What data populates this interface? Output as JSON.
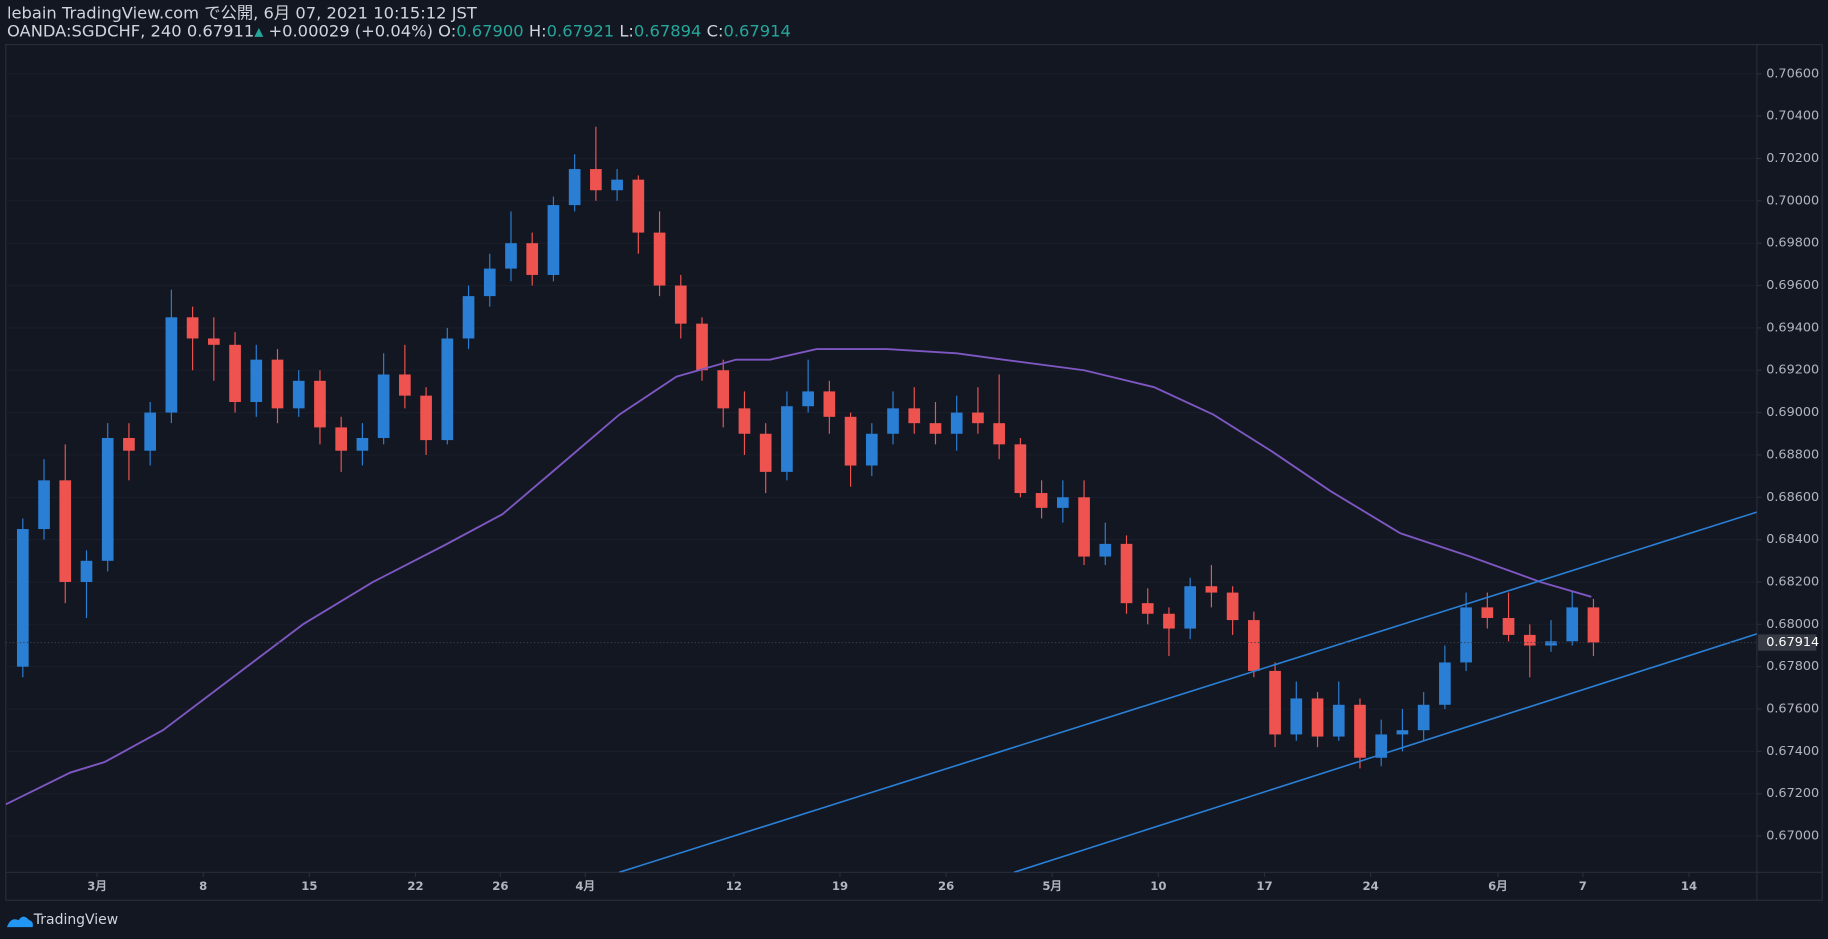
{
  "header": {
    "line1": "lebain TradingView.com で公開, 6月 07, 2021 10:15:12 JST",
    "symbol": "OANDA:SGDCHF, 240",
    "price": "0.67911",
    "arrow": "▲",
    "change": "+0.00029 (+0.04%)",
    "o_label": "O:",
    "o": "0.67900",
    "h_label": "H:",
    "h": "0.67921",
    "l_label": "L:",
    "l": "0.67894",
    "c_label": "C:",
    "c": "0.67914"
  },
  "footer": {
    "brand": "TradingView"
  },
  "chart_data": {
    "type": "candlestick",
    "up_color": "#2a7fd4",
    "down_color": "#ef5350",
    "x": [
      -4,
      -3,
      -2,
      -1,
      0,
      1,
      2,
      3,
      4,
      5,
      6,
      7,
      8,
      9,
      10,
      11,
      12,
      13,
      14,
      15,
      16,
      17,
      18,
      19,
      20,
      21,
      22,
      23,
      24,
      25,
      26,
      27,
      28,
      29,
      30,
      31,
      32,
      33,
      34,
      35,
      36,
      37,
      38,
      39,
      40,
      41,
      42,
      43,
      44,
      45,
      46,
      47,
      48,
      49,
      50,
      51,
      52,
      53,
      54,
      55,
      56,
      57,
      58,
      59,
      60,
      61,
      62,
      63,
      64,
      65,
      66,
      67,
      68,
      69,
      70
    ],
    "ohlc": [
      [
        0.678,
        0.685,
        0.6775,
        0.6845
      ],
      [
        0.6845,
        0.6878,
        0.684,
        0.6868
      ],
      [
        0.6868,
        0.6885,
        0.681,
        0.682
      ],
      [
        0.682,
        0.6835,
        0.6803,
        0.683
      ],
      [
        0.683,
        0.6895,
        0.6825,
        0.6888
      ],
      [
        0.6888,
        0.6895,
        0.6868,
        0.6882
      ],
      [
        0.6882,
        0.6905,
        0.6875,
        0.69
      ],
      [
        0.69,
        0.6958,
        0.6895,
        0.6945
      ],
      [
        0.6945,
        0.695,
        0.692,
        0.6935
      ],
      [
        0.6935,
        0.6945,
        0.6915,
        0.6932
      ],
      [
        0.6932,
        0.6938,
        0.69,
        0.6905
      ],
      [
        0.6905,
        0.6932,
        0.6898,
        0.6925
      ],
      [
        0.6925,
        0.693,
        0.6895,
        0.6902
      ],
      [
        0.6902,
        0.692,
        0.6898,
        0.6915
      ],
      [
        0.6915,
        0.692,
        0.6885,
        0.6893
      ],
      [
        0.6893,
        0.6898,
        0.6872,
        0.6882
      ],
      [
        0.6882,
        0.6895,
        0.6875,
        0.6888
      ],
      [
        0.6888,
        0.6928,
        0.6885,
        0.6918
      ],
      [
        0.6918,
        0.6932,
        0.6902,
        0.6908
      ],
      [
        0.6908,
        0.6912,
        0.688,
        0.6887
      ],
      [
        0.6887,
        0.694,
        0.6885,
        0.6935
      ],
      [
        0.6935,
        0.696,
        0.693,
        0.6955
      ],
      [
        0.6955,
        0.6975,
        0.695,
        0.6968
      ],
      [
        0.6968,
        0.6995,
        0.6962,
        0.698
      ],
      [
        0.698,
        0.6985,
        0.696,
        0.6965
      ],
      [
        0.6965,
        0.7002,
        0.6962,
        0.6998
      ],
      [
        0.6998,
        0.7022,
        0.6995,
        0.7015
      ],
      [
        0.7015,
        0.7035,
        0.7,
        0.7005
      ],
      [
        0.7005,
        0.7015,
        0.7,
        0.701
      ],
      [
        0.701,
        0.7012,
        0.6975,
        0.6985
      ],
      [
        0.6985,
        0.6995,
        0.6955,
        0.696
      ],
      [
        0.696,
        0.6965,
        0.6935,
        0.6942
      ],
      [
        0.6942,
        0.6945,
        0.6915,
        0.692
      ],
      [
        0.692,
        0.6925,
        0.6893,
        0.6902
      ],
      [
        0.6902,
        0.691,
        0.688,
        0.689
      ],
      [
        0.689,
        0.6895,
        0.6862,
        0.6872
      ],
      [
        0.6872,
        0.691,
        0.6868,
        0.6903
      ],
      [
        0.6903,
        0.6925,
        0.69,
        0.691
      ],
      [
        0.691,
        0.6915,
        0.689,
        0.6898
      ],
      [
        0.6898,
        0.69,
        0.6865,
        0.6875
      ],
      [
        0.6875,
        0.6895,
        0.687,
        0.689
      ],
      [
        0.689,
        0.691,
        0.6885,
        0.6902
      ],
      [
        0.6902,
        0.6912,
        0.689,
        0.6895
      ],
      [
        0.6895,
        0.6905,
        0.6885,
        0.689
      ],
      [
        0.689,
        0.6908,
        0.6882,
        0.69
      ],
      [
        0.69,
        0.6912,
        0.689,
        0.6895
      ],
      [
        0.6895,
        0.6918,
        0.6878,
        0.6885
      ],
      [
        0.6885,
        0.6888,
        0.686,
        0.6862
      ],
      [
        0.6862,
        0.6868,
        0.685,
        0.6855
      ],
      [
        0.6855,
        0.6868,
        0.6848,
        0.686
      ],
      [
        0.686,
        0.6868,
        0.6828,
        0.6832
      ],
      [
        0.6832,
        0.6848,
        0.6828,
        0.6838
      ],
      [
        0.6838,
        0.6842,
        0.6805,
        0.681
      ],
      [
        0.681,
        0.6817,
        0.68,
        0.6805
      ],
      [
        0.6805,
        0.6808,
        0.6785,
        0.6798
      ],
      [
        0.6798,
        0.6822,
        0.6793,
        0.6818
      ],
      [
        0.6818,
        0.6828,
        0.6808,
        0.6815
      ],
      [
        0.6815,
        0.6818,
        0.6795,
        0.6802
      ],
      [
        0.6802,
        0.6806,
        0.6775,
        0.6778
      ],
      [
        0.6778,
        0.6782,
        0.6742,
        0.6748
      ],
      [
        0.6748,
        0.6773,
        0.6745,
        0.6765
      ],
      [
        0.6765,
        0.6768,
        0.6742,
        0.6747
      ],
      [
        0.6747,
        0.6773,
        0.6745,
        0.6762
      ],
      [
        0.6762,
        0.6765,
        0.6732,
        0.6737
      ],
      [
        0.6737,
        0.6755,
        0.6733,
        0.6748
      ],
      [
        0.6748,
        0.676,
        0.674,
        0.675
      ],
      [
        0.675,
        0.6768,
        0.6745,
        0.6762
      ],
      [
        0.6762,
        0.679,
        0.676,
        0.6782
      ],
      [
        0.6782,
        0.6815,
        0.6778,
        0.6808
      ],
      [
        0.6808,
        0.6815,
        0.6798,
        0.6803
      ],
      [
        0.6803,
        0.6815,
        0.6792,
        0.6795
      ],
      [
        0.6795,
        0.68,
        0.6775,
        0.679
      ],
      [
        0.679,
        0.6802,
        0.6787,
        0.6792
      ],
      [
        0.6792,
        0.6816,
        0.679,
        0.6808
      ],
      [
        0.6808,
        0.6812,
        0.6785,
        0.67914
      ]
    ],
    "ma": {
      "color": "#7e57c2",
      "x": [
        -4.3,
        -1.26,
        0.36,
        3.1,
        6.4,
        9.7,
        13,
        16.3,
        19.1,
        21.8,
        24.6,
        27.3,
        30.1,
        31.7,
        33.9,
        37.2,
        40.5,
        42.7,
        46.5,
        49.8,
        52.6,
        55.3,
        58.1,
        61.4,
        64.7,
        68,
        70.4
      ],
      "values": [
        0.6715,
        0.673,
        0.6735,
        0.675,
        0.6775,
        0.68,
        0.682,
        0.6837,
        0.6852,
        0.6875,
        0.6899,
        0.6917,
        0.6925,
        0.6925,
        0.693,
        0.693,
        0.6928,
        0.6925,
        0.692,
        0.6912,
        0.6899,
        0.6882,
        0.6863,
        0.6843,
        0.6832,
        0.682,
        0.6813
      ]
    },
    "trendlines": [
      {
        "color": "#2a7fd4",
        "x": [
          24.6,
          78.2
        ],
        "values": [
          0.66829,
          0.6853
        ]
      },
      {
        "color": "#2a7fd4",
        "x": [
          43.2,
          78.2
        ],
        "values": [
          0.66829,
          0.67955
        ]
      }
    ],
    "last_price": 0.67914,
    "xlim": [
      -4.3,
      78.2
    ],
    "ylim": [
      0.66829,
      0.70738
    ],
    "xticks": [
      {
        "value": 0,
        "label": "3月"
      },
      {
        "value": 5,
        "label": "8"
      },
      {
        "value": 10,
        "label": "15"
      },
      {
        "value": 15,
        "label": "22"
      },
      {
        "value": 19,
        "label": "26"
      },
      {
        "value": 23,
        "label": "4月"
      },
      {
        "value": 30,
        "label": "12"
      },
      {
        "value": 35,
        "label": "19"
      },
      {
        "value": 40,
        "label": "26"
      },
      {
        "value": 45,
        "label": "5月"
      },
      {
        "value": 50,
        "label": "10"
      },
      {
        "value": 55,
        "label": "17"
      },
      {
        "value": 60,
        "label": "24"
      },
      {
        "value": 66,
        "label": "6月"
      },
      {
        "value": 70,
        "label": "7"
      },
      {
        "value": 75,
        "label": "14"
      }
    ],
    "yticks": [
      {
        "value": 0.67,
        "label": "0.67000"
      },
      {
        "value": 0.672,
        "label": "0.67200"
      },
      {
        "value": 0.674,
        "label": "0.67400"
      },
      {
        "value": 0.676,
        "label": "0.67600"
      },
      {
        "value": 0.678,
        "label": "0.67800"
      },
      {
        "value": 0.68,
        "label": "0.68000"
      },
      {
        "value": 0.682,
        "label": "0.68200"
      },
      {
        "value": 0.684,
        "label": "0.68400"
      },
      {
        "value": 0.686,
        "label": "0.68600"
      },
      {
        "value": 0.688,
        "label": "0.68800"
      },
      {
        "value": 0.69,
        "label": "0.69000"
      },
      {
        "value": 0.692,
        "label": "0.69200"
      },
      {
        "value": 0.694,
        "label": "0.69400"
      },
      {
        "value": 0.696,
        "label": "0.69600"
      },
      {
        "value": 0.698,
        "label": "0.69800"
      },
      {
        "value": 0.7,
        "label": "0.70000"
      },
      {
        "value": 0.702,
        "label": "0.70200"
      },
      {
        "value": 0.704,
        "label": "0.70400"
      },
      {
        "value": 0.706,
        "label": "0.70600"
      }
    ]
  }
}
